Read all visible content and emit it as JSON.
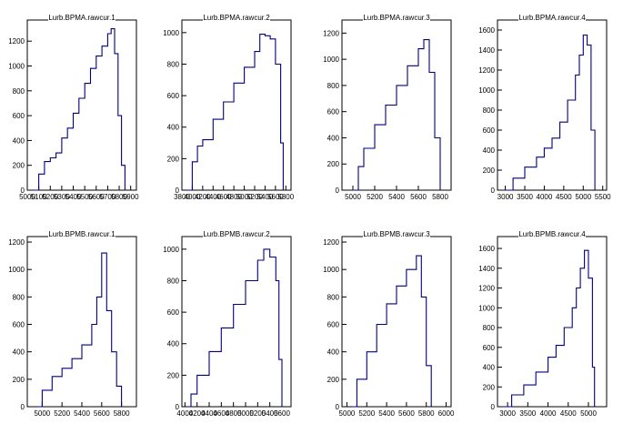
{
  "chart_data": [
    {
      "type": "line",
      "title": "Lurb.BPMA.rawcur.1",
      "x_ticks": [
        5000,
        5100,
        5200,
        5300,
        5400,
        5500,
        5600,
        5700,
        5800,
        5900
      ],
      "y_ticks": [
        0,
        200,
        400,
        600,
        800,
        1000,
        1200
      ],
      "xlim": [
        5000,
        5950
      ],
      "ylim": [
        0,
        1370
      ],
      "series": [
        {
          "x": [
            5050,
            5100,
            5150,
            5200,
            5250,
            5300,
            5350,
            5400,
            5450,
            5500,
            5550,
            5600,
            5650,
            5700,
            5730,
            5760,
            5790,
            5820,
            5850
          ],
          "values": [
            0,
            130,
            230,
            260,
            300,
            420,
            500,
            620,
            740,
            860,
            980,
            1080,
            1160,
            1260,
            1300,
            1100,
            600,
            200,
            0
          ]
        }
      ]
    },
    {
      "type": "line",
      "title": "Lurb.BPMA.rawcur.2",
      "x_ticks": [
        3800,
        4000,
        4200,
        4400,
        4600,
        4800,
        5000,
        5200,
        5400,
        5600,
        5800
      ],
      "y_ticks": [
        0,
        200,
        400,
        600,
        800,
        1000
      ],
      "xlim": [
        3800,
        5900
      ],
      "ylim": [
        0,
        1080
      ],
      "series": [
        {
          "x": [
            3900,
            4000,
            4100,
            4200,
            4400,
            4600,
            4800,
            5000,
            5200,
            5300,
            5400,
            5500,
            5600,
            5700,
            5750
          ],
          "values": [
            0,
            180,
            280,
            320,
            450,
            560,
            680,
            780,
            880,
            990,
            980,
            960,
            800,
            300,
            0
          ]
        }
      ]
    },
    {
      "type": "line",
      "title": "Lurb.BPMA.rawcur.3",
      "x_ticks": [
        5000,
        5200,
        5400,
        5600,
        5800
      ],
      "y_ticks": [
        0,
        200,
        400,
        600,
        800,
        1000,
        1200
      ],
      "xlim": [
        4900,
        5900
      ],
      "ylim": [
        0,
        1300
      ],
      "series": [
        {
          "x": [
            5000,
            5050,
            5100,
            5200,
            5300,
            5400,
            5500,
            5600,
            5650,
            5700,
            5750,
            5800
          ],
          "values": [
            0,
            180,
            320,
            500,
            650,
            800,
            950,
            1080,
            1150,
            900,
            400,
            0
          ]
        }
      ]
    },
    {
      "type": "line",
      "title": "Lurb.BPMA.rawcur.4",
      "x_ticks": [
        3000,
        3500,
        4000,
        4500,
        5000,
        5500
      ],
      "y_ticks": [
        0,
        200,
        400,
        600,
        800,
        1000,
        1200,
        1400,
        1600
      ],
      "xlim": [
        2800,
        5600
      ],
      "ylim": [
        0,
        1700
      ],
      "series": [
        {
          "x": [
            3000,
            3200,
            3500,
            3800,
            4000,
            4200,
            4400,
            4600,
            4800,
            4900,
            5000,
            5100,
            5200,
            5300
          ],
          "values": [
            0,
            120,
            230,
            330,
            420,
            520,
            680,
            900,
            1150,
            1350,
            1550,
            1450,
            600,
            0
          ]
        }
      ]
    },
    {
      "type": "line",
      "title": "Lurb.BPMB.rawcur.1",
      "x_ticks": [
        5000,
        5200,
        5400,
        5600,
        5800
      ],
      "y_ticks": [
        0,
        200,
        400,
        600,
        800,
        1000,
        1200
      ],
      "xlim": [
        4850,
        5950
      ],
      "ylim": [
        0,
        1240
      ],
      "series": [
        {
          "x": [
            4950,
            5000,
            5100,
            5200,
            5300,
            5400,
            5500,
            5550,
            5600,
            5650,
            5700,
            5750,
            5800
          ],
          "values": [
            0,
            120,
            220,
            280,
            350,
            450,
            600,
            800,
            1120,
            700,
            400,
            150,
            0
          ]
        }
      ]
    },
    {
      "type": "line",
      "title": "Lurb.BPMB.rawcur.2",
      "x_ticks": [
        4000,
        4200,
        4400,
        4600,
        4800,
        5000,
        5200,
        5400,
        5600
      ],
      "y_ticks": [
        0,
        200,
        400,
        600,
        800,
        1000
      ],
      "xlim": [
        3950,
        5750
      ],
      "ylim": [
        0,
        1080
      ],
      "series": [
        {
          "x": [
            4050,
            4100,
            4200,
            4400,
            4600,
            4800,
            5000,
            5200,
            5300,
            5400,
            5500,
            5550,
            5600
          ],
          "values": [
            0,
            80,
            200,
            350,
            500,
            650,
            800,
            930,
            1000,
            950,
            800,
            300,
            0
          ]
        }
      ]
    },
    {
      "type": "line",
      "title": "Lurb.BPMB.rawcur.3",
      "x_ticks": [
        5000,
        5200,
        5400,
        5600,
        5800,
        6000
      ],
      "y_ticks": [
        0,
        200,
        400,
        600,
        800,
        1000,
        1200
      ],
      "xlim": [
        4950,
        6050
      ],
      "ylim": [
        0,
        1240
      ],
      "series": [
        {
          "x": [
            5050,
            5100,
            5200,
            5300,
            5400,
            5500,
            5600,
            5700,
            5750,
            5800,
            5850
          ],
          "values": [
            0,
            200,
            400,
            600,
            750,
            880,
            1000,
            1100,
            800,
            300,
            0
          ]
        }
      ]
    },
    {
      "type": "line",
      "title": "Lurb.BPMB.rawcur.4",
      "x_ticks": [
        3000,
        3500,
        4000,
        4500,
        5000
      ],
      "y_ticks": [
        0,
        200,
        400,
        600,
        800,
        1000,
        1200,
        1400,
        1600
      ],
      "xlim": [
        2750,
        5450
      ],
      "ylim": [
        0,
        1720
      ],
      "series": [
        {
          "x": [
            2900,
            3100,
            3400,
            3700,
            4000,
            4200,
            4400,
            4600,
            4700,
            4800,
            4900,
            5000,
            5100,
            5150
          ],
          "values": [
            0,
            120,
            220,
            350,
            500,
            620,
            800,
            1000,
            1200,
            1400,
            1580,
            1300,
            400,
            0
          ]
        }
      ]
    }
  ]
}
